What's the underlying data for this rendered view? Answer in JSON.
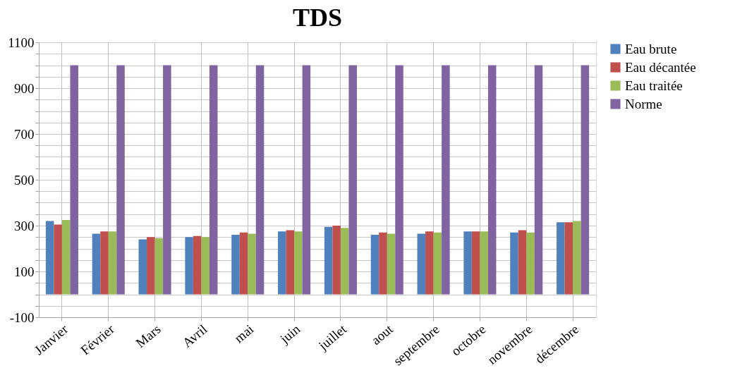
{
  "chart_data": {
    "type": "bar",
    "title": "TDS",
    "categories": [
      "Janvier",
      "Février",
      "Mars",
      "Avril",
      "mai",
      "juin",
      "juillet",
      "aout",
      "septembre",
      "octobre",
      "novembre",
      "décembre"
    ],
    "series": [
      {
        "name": "Eau brute",
        "color": "#4f81bd",
        "values": [
          320,
          265,
          240,
          250,
          260,
          275,
          295,
          260,
          265,
          275,
          270,
          315
        ]
      },
      {
        "name": "Eau décantée",
        "color": "#c0504d",
        "values": [
          305,
          275,
          250,
          255,
          270,
          280,
          300,
          270,
          275,
          275,
          280,
          315
        ]
      },
      {
        "name": "Eau traitée",
        "color": "#9bbb59",
        "values": [
          325,
          275,
          245,
          250,
          265,
          275,
          290,
          265,
          270,
          275,
          270,
          320
        ]
      },
      {
        "name": "Norme",
        "color": "#8064a2",
        "values": [
          1000,
          1000,
          1000,
          1000,
          1000,
          1000,
          1000,
          1000,
          1000,
          1000,
          1000,
          1000
        ]
      }
    ],
    "ylim": [
      -100,
      1100
    ],
    "yticks": [
      -100,
      {
        "value": -50,
        "label": null
      },
      {
        "value": 0,
        "label": null
      },
      {
        "value": 50,
        "label": null
      },
      100,
      {
        "value": 150,
        "label": null
      },
      {
        "value": 200,
        "label": null
      },
      {
        "value": 250,
        "label": null
      },
      300,
      {
        "value": 350,
        "label": null
      },
      {
        "value": 400,
        "label": null
      },
      {
        "value": 450,
        "label": null
      },
      500,
      {
        "value": 550,
        "label": null
      },
      {
        "value": 600,
        "label": null
      },
      {
        "value": 650,
        "label": null
      },
      700,
      {
        "value": 750,
        "label": null
      },
      {
        "value": 800,
        "label": null
      },
      {
        "value": 850,
        "label": null
      },
      900,
      {
        "value": 950,
        "label": null
      },
      {
        "value": 1000,
        "label": null
      },
      {
        "value": 1050,
        "label": null
      },
      1100
    ],
    "grid": true,
    "legend": "top right"
  }
}
